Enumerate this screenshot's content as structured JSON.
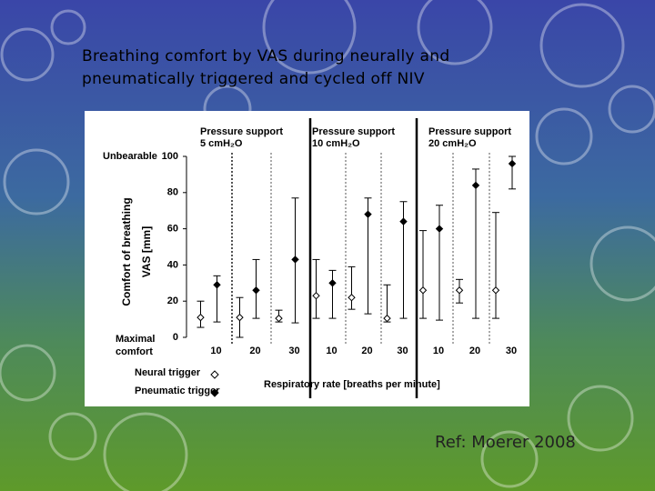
{
  "slide_title": "Breathing comfort by VAS during neurally and pneumatically triggered and cycled off NIV",
  "reference": "Ref: Moerer 2008",
  "chart_data": {
    "type": "range",
    "y_label": [
      "Comfort of breathing",
      "VAS [mm]"
    ],
    "top_label": "Unbearable",
    "bottom_label": [
      "Maximal",
      "comfort"
    ],
    "x_label": "Respiratory rate [breaths per minute]",
    "ylim": [
      0,
      100
    ],
    "yticks": [
      0,
      20,
      40,
      60,
      80,
      100
    ],
    "panels": [
      {
        "title": "Pressure support",
        "subtitle": "5 cmH₂O",
        "categories": [
          "10",
          "20",
          "30"
        ]
      },
      {
        "title": "Pressure support",
        "subtitle": "10 cmH₂O",
        "categories": [
          "10",
          "20",
          "30"
        ]
      },
      {
        "title": "Pressure support",
        "subtitle": "20 cmH₂O",
        "categories": [
          "10",
          "20",
          "30"
        ]
      }
    ],
    "series": [
      {
        "name": "Neural trigger",
        "marker": "open",
        "color": "#000000",
        "values": [
          11,
          11,
          10.5,
          23,
          22,
          10.5,
          26,
          26,
          26
        ],
        "low": [
          5.5,
          0,
          8.5,
          10.5,
          15.5,
          8.5,
          10.5,
          19,
          10.5
        ],
        "high": [
          20,
          22,
          15,
          43,
          39,
          29,
          59,
          32,
          69
        ]
      },
      {
        "name": "Pneumatic trigger",
        "marker": "filled",
        "color": "#000000",
        "values": [
          29,
          26,
          43,
          30,
          68,
          64,
          60,
          84,
          96
        ],
        "low": [
          8.5,
          10.5,
          8,
          10.5,
          13,
          10.5,
          9.5,
          10.5,
          82
        ],
        "high": [
          34,
          43,
          77,
          37,
          77,
          75,
          73,
          93,
          100
        ]
      }
    ]
  }
}
